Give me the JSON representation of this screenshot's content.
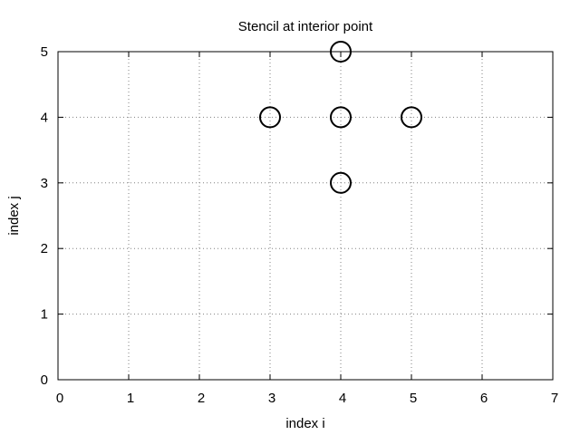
{
  "chart_data": {
    "type": "scatter",
    "title": "Stencil at interior point",
    "xlabel": "index i",
    "ylabel": "index j",
    "xlim": [
      0,
      7
    ],
    "ylim": [
      0,
      5
    ],
    "xticks": [
      "0",
      "1",
      "2",
      "3",
      "4",
      "5",
      "6",
      "7"
    ],
    "yticks": [
      "0",
      "1",
      "2",
      "3",
      "4",
      "5"
    ],
    "grid": true,
    "marker": "open-circle",
    "series": [
      {
        "points": [
          {
            "x": 4,
            "y": 5
          },
          {
            "x": 3,
            "y": 4
          },
          {
            "x": 4,
            "y": 4
          },
          {
            "x": 5,
            "y": 4
          },
          {
            "x": 4,
            "y": 3
          }
        ]
      }
    ],
    "colors": {
      "marker": "#000000",
      "grid": "#808080",
      "axes": "#000000"
    }
  }
}
